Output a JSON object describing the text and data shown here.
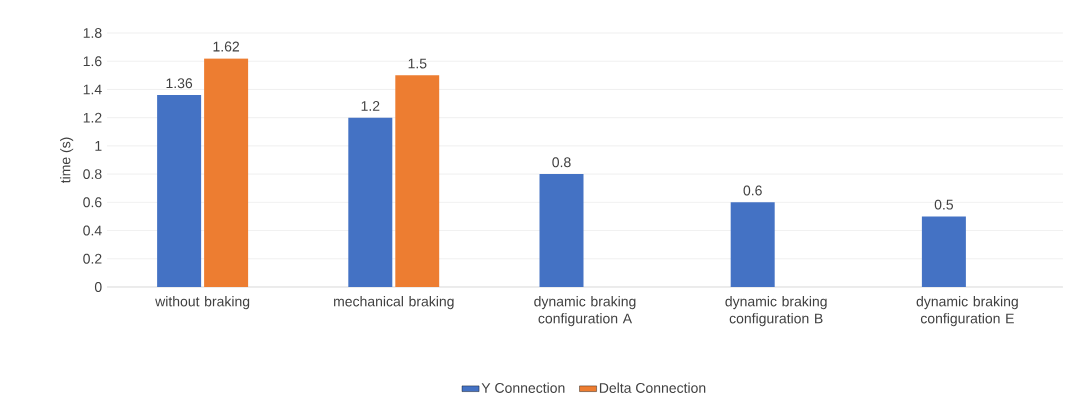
{
  "chart_data": {
    "type": "bar",
    "ylabel": "time (s)",
    "categories": [
      "without braking",
      "mechanical braking",
      "dynamic braking configuration A",
      "dynamic braking configuration B",
      "dynamic braking configuration E"
    ],
    "series": [
      {
        "name": "Y Connection",
        "color": "#4472c4",
        "values": [
          1.36,
          1.2,
          0.8,
          0.6,
          0.5
        ]
      },
      {
        "name": "Delta Connection",
        "color": "#ed7d31",
        "values": [
          1.62,
          1.5,
          null,
          null,
          null
        ]
      }
    ],
    "ylim": [
      0,
      1.8
    ],
    "yticks": [
      0,
      0.2,
      0.4,
      0.6,
      0.8,
      1,
      1.2,
      1.4,
      1.6,
      1.8
    ],
    "grid": "y",
    "legend": "bottom",
    "data_labels": true
  }
}
